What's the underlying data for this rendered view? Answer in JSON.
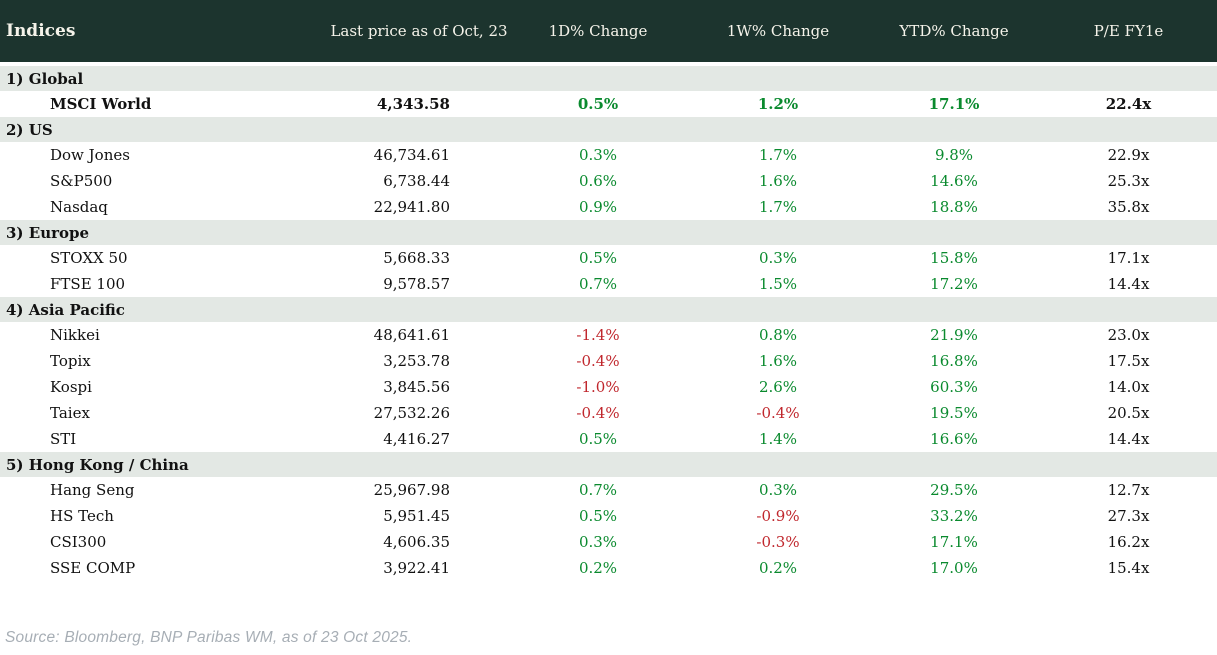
{
  "colors": {
    "header_bg": "#1c342e",
    "header_text": "#f5f3ea",
    "section_bg": "#e3e8e4",
    "positive": "#0a8a2e",
    "negative": "#c0272d",
    "value_text": "#111111",
    "source_text": "#a7aeb5"
  },
  "table": {
    "columns": [
      {
        "label": "Indices"
      },
      {
        "label": "Last price as of Oct, 23"
      },
      {
        "label": "1D% Change"
      },
      {
        "label": "1W% Change"
      },
      {
        "label": "YTD% Change"
      },
      {
        "label": "P/E FY1e"
      }
    ],
    "sections": [
      {
        "label": "1) Global",
        "rows": [
          {
            "name": "MSCI World",
            "last_price": "4,343.58",
            "d1": "0.5%",
            "w1": "1.2%",
            "ytd": "17.1%",
            "pe": "22.4x",
            "bold": true
          }
        ]
      },
      {
        "label": "2) US",
        "rows": [
          {
            "name": "Dow Jones",
            "last_price": "46,734.61",
            "d1": "0.3%",
            "w1": "1.7%",
            "ytd": "9.8%",
            "pe": "22.9x"
          },
          {
            "name": "S&P500",
            "last_price": "6,738.44",
            "d1": "0.6%",
            "w1": "1.6%",
            "ytd": "14.6%",
            "pe": "25.3x"
          },
          {
            "name": "Nasdaq",
            "last_price": "22,941.80",
            "d1": "0.9%",
            "w1": "1.7%",
            "ytd": "18.8%",
            "pe": "35.8x"
          }
        ]
      },
      {
        "label": "3) Europe",
        "rows": [
          {
            "name": "STOXX 50",
            "last_price": "5,668.33",
            "d1": "0.5%",
            "w1": "0.3%",
            "ytd": "15.8%",
            "pe": "17.1x"
          },
          {
            "name": "FTSE 100",
            "last_price": "9,578.57",
            "d1": "0.7%",
            "w1": "1.5%",
            "ytd": "17.2%",
            "pe": "14.4x"
          }
        ]
      },
      {
        "label": "4) Asia Pacific",
        "rows": [
          {
            "name": "Nikkei",
            "last_price": "48,641.61",
            "d1": "-1.4%",
            "w1": "0.8%",
            "ytd": "21.9%",
            "pe": "23.0x"
          },
          {
            "name": "Topix",
            "last_price": "3,253.78",
            "d1": "-0.4%",
            "w1": "1.6%",
            "ytd": "16.8%",
            "pe": "17.5x"
          },
          {
            "name": "Kospi",
            "last_price": "3,845.56",
            "d1": "-1.0%",
            "w1": "2.6%",
            "ytd": "60.3%",
            "pe": "14.0x"
          },
          {
            "name": "Taiex",
            "last_price": "27,532.26",
            "d1": "-0.4%",
            "w1": "-0.4%",
            "ytd": "19.5%",
            "pe": "20.5x"
          },
          {
            "name": "STI",
            "last_price": "4,416.27",
            "d1": "0.5%",
            "w1": "1.4%",
            "ytd": "16.6%",
            "pe": "14.4x"
          }
        ]
      },
      {
        "label": "5) Hong Kong / China",
        "rows": [
          {
            "name": "Hang Seng",
            "last_price": "25,967.98",
            "d1": "0.7%",
            "w1": "0.3%",
            "ytd": "29.5%",
            "pe": "12.7x"
          },
          {
            "name": "HS Tech",
            "last_price": "5,951.45",
            "d1": "0.5%",
            "w1": "-0.9%",
            "ytd": "33.2%",
            "pe": "27.3x"
          },
          {
            "name": "CSI300",
            "last_price": "4,606.35",
            "d1": "0.3%",
            "w1": "-0.3%",
            "ytd": "17.1%",
            "pe": "16.2x"
          },
          {
            "name": "SSE COMP",
            "last_price": "3,922.41",
            "d1": "0.2%",
            "w1": "0.2%",
            "ytd": "17.0%",
            "pe": "15.4x"
          }
        ]
      }
    ]
  },
  "source_note": "Source: Bloomberg, BNP Paribas WM, as of 23 Oct 2025.",
  "chart_data": {
    "type": "table",
    "title": "Indices",
    "columns": [
      "Indices",
      "Last price as of Oct, 23",
      "1D% Change",
      "1W% Change",
      "YTD% Change",
      "P/E FY1e"
    ],
    "rows": [
      [
        "1) Global",
        null,
        null,
        null,
        null,
        null
      ],
      [
        "MSCI World",
        4343.58,
        0.5,
        1.2,
        17.1,
        22.4
      ],
      [
        "2) US",
        null,
        null,
        null,
        null,
        null
      ],
      [
        "Dow Jones",
        46734.61,
        0.3,
        1.7,
        9.8,
        22.9
      ],
      [
        "S&P500",
        6738.44,
        0.6,
        1.6,
        14.6,
        25.3
      ],
      [
        "Nasdaq",
        22941.8,
        0.9,
        1.7,
        18.8,
        35.8
      ],
      [
        "3) Europe",
        null,
        null,
        null,
        null,
        null
      ],
      [
        "STOXX 50",
        5668.33,
        0.5,
        0.3,
        15.8,
        17.1
      ],
      [
        "FTSE 100",
        9578.57,
        0.7,
        1.5,
        17.2,
        14.4
      ],
      [
        "4) Asia Pacific",
        null,
        null,
        null,
        null,
        null
      ],
      [
        "Nikkei",
        48641.61,
        -1.4,
        0.8,
        21.9,
        23.0
      ],
      [
        "Topix",
        3253.78,
        -0.4,
        1.6,
        16.8,
        17.5
      ],
      [
        "Kospi",
        3845.56,
        -1.0,
        2.6,
        60.3,
        14.0
      ],
      [
        "Taiex",
        27532.26,
        -0.4,
        -0.4,
        19.5,
        20.5
      ],
      [
        "STI",
        4416.27,
        0.5,
        1.4,
        16.6,
        14.4
      ],
      [
        "5) Hong Kong / China",
        null,
        null,
        null,
        null,
        null
      ],
      [
        "Hang Seng",
        25967.98,
        0.7,
        0.3,
        29.5,
        12.7
      ],
      [
        "HS Tech",
        5951.45,
        0.5,
        -0.9,
        33.2,
        27.3
      ],
      [
        "CSI300",
        4606.35,
        0.3,
        -0.3,
        17.1,
        16.2
      ],
      [
        "SSE COMP",
        3922.41,
        0.2,
        0.2,
        17.0,
        15.4
      ]
    ],
    "notes": "Percent change cells colored green when positive, red when negative"
  }
}
